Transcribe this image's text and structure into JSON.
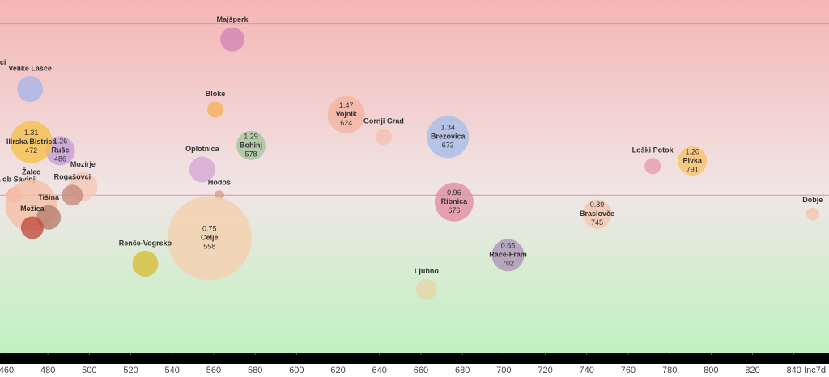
{
  "chart_data": {
    "type": "bubble",
    "x_label": "Inc7d",
    "xlim": [
      456.9,
      856.9
    ],
    "ylim": [
      0.08,
      2.14
    ],
    "xticks": [
      460,
      480,
      500,
      520,
      540,
      560,
      580,
      600,
      620,
      640,
      660,
      680,
      700,
      720,
      740,
      760,
      780,
      800,
      820,
      840
    ],
    "ref_lines": [
      2,
      1
    ],
    "ref_color": "#e89090",
    "points": [
      {
        "label": "ci",
        "x": 458.3,
        "y": 1.73,
        "size": 0,
        "color": "#f0b0a0"
      },
      {
        "label": "Majšperk",
        "x": 569,
        "y": 1.91,
        "size": 15,
        "color": "#d386b6"
      },
      {
        "label": "Velike Lašče",
        "x": 471.4,
        "y": 1.62,
        "size": 16,
        "color": "#a9b7e6"
      },
      {
        "label": "Bloke",
        "x": 560.8,
        "y": 1.5,
        "size": 10,
        "color": "#f5b25c"
      },
      {
        "label": "Vojnik",
        "x": 624,
        "y": 1.47,
        "size": 23,
        "color": "#f2b4a3",
        "labeled": true
      },
      {
        "label": "Gornji Grad",
        "x": 642,
        "y": 1.34,
        "size": 10,
        "color": "#f5c0ae"
      },
      {
        "label": "Brezovica",
        "x": 673,
        "y": 1.34,
        "size": 26,
        "color": "#a6bee8",
        "labeled": true
      },
      {
        "label": "Ruše",
        "x": 486,
        "y": 1.26,
        "size": 18,
        "color": "#c69ed6",
        "labeled": true
      },
      {
        "label": "Ilirska Bistrica",
        "x": 472,
        "y": 1.31,
        "size": 26,
        "color": "#f6c04e",
        "labeled": true
      },
      {
        "label": "Bohinj",
        "x": 578,
        "y": 1.29,
        "size": 18,
        "color": "#a6c69c",
        "labeled": true
      },
      {
        "label": "Oplotnica",
        "x": 554.5,
        "y": 1.15,
        "size": 16,
        "color": "#d6a6d6"
      },
      {
        "label": "Loški Potok",
        "x": 771.8,
        "y": 1.17,
        "size": 10,
        "color": "#e69cae"
      },
      {
        "label": "Pivka",
        "x": 791,
        "y": 1.2,
        "value_label": "1.20",
        "size": 18,
        "color": "#f6c26c",
        "labeled": true
      },
      {
        "label": "Mozirje",
        "x": 496.9,
        "y": 1.05,
        "size": 18,
        "color": "#f5c8b6"
      },
      {
        "label": "Rogašovci",
        "x": 491.8,
        "y": 1.0,
        "size": 13,
        "color": "#c48c7c"
      },
      {
        "label": "Hodoš",
        "x": 562.7,
        "y": 1.0,
        "size": 6,
        "color": "#d69e8e"
      },
      {
        "label": "ca ob Savinji",
        "x": 464,
        "y": 1.0,
        "size": 10,
        "color": "#f0a68e"
      },
      {
        "label": "Žalec",
        "x": 472,
        "y": 0.94,
        "size": 32,
        "color": "#f5bfa6"
      },
      {
        "label": "Tišina",
        "x": 480.4,
        "y": 0.87,
        "size": 15,
        "color": "#b67e6e"
      },
      {
        "label": "Mežica",
        "x": 472.5,
        "y": 0.81,
        "size": 14,
        "color": "#c04e40"
      },
      {
        "label": "Ribnica",
        "x": 676,
        "y": 0.96,
        "size": 24,
        "color": "#e08ea0",
        "labeled": true
      },
      {
        "label": "Braslovče",
        "x": 745,
        "y": 0.89,
        "size": 18,
        "color": "#f5c6ae",
        "labeled": true
      },
      {
        "label": "Dobje",
        "x": 849,
        "y": 0.89,
        "size": 8,
        "color": "#f5c6ae"
      },
      {
        "label": "Celje",
        "x": 558,
        "y": 0.75,
        "size": 52,
        "color": "#f5cfae",
        "labeled": true
      },
      {
        "label": "Renče-Vogrsko",
        "x": 527,
        "y": 0.6,
        "size": 16,
        "color": "#d6be3c"
      },
      {
        "label": "Rače-Fram",
        "x": 702,
        "y": 0.65,
        "size": 20,
        "color": "#ae96b6",
        "labeled": true
      },
      {
        "label": "Ljubno",
        "x": 662.7,
        "y": 0.45,
        "size": 13,
        "color": "#e6d6a6"
      }
    ]
  }
}
